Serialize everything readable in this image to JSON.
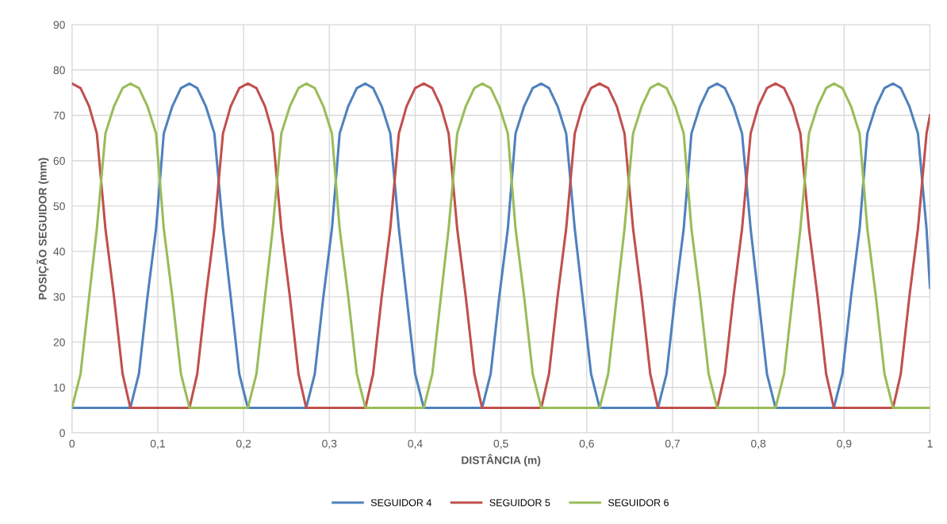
{
  "chart_data": {
    "type": "line",
    "xlabel": "DISTÂNCIA (m)",
    "ylabel": "POSIÇÃO SEGUIDOR (mm)",
    "x": [
      0,
      0.01,
      0.02,
      0.029,
      0.039,
      0.049,
      0.059,
      0.068,
      0.078,
      0.088,
      0.098,
      0.107,
      0.117,
      0.127,
      0.137,
      0.146,
      0.156,
      0.166,
      0.176,
      0.185,
      0.195,
      0.205,
      0.215,
      0.225,
      0.234,
      0.244,
      0.254,
      0.264,
      0.273,
      0.283,
      0.293,
      0.303,
      0.312,
      0.322,
      0.332,
      0.342,
      0.351,
      0.361,
      0.371,
      0.381,
      0.39,
      0.4,
      0.41,
      0.42,
      0.43,
      0.439,
      0.449,
      0.459,
      0.469,
      0.478,
      0.488,
      0.498,
      0.508,
      0.517,
      0.527,
      0.537,
      0.547,
      0.556,
      0.566,
      0.576,
      0.586,
      0.595,
      0.605,
      0.615,
      0.625,
      0.635,
      0.644,
      0.654,
      0.664,
      0.674,
      0.683,
      0.693,
      0.703,
      0.713,
      0.722,
      0.732,
      0.742,
      0.752,
      0.761,
      0.771,
      0.781,
      0.791,
      0.8,
      0.81,
      0.82,
      0.83,
      0.84,
      0.849,
      0.859,
      0.869,
      0.879,
      0.888,
      0.898,
      0.908,
      0.918,
      0.927,
      0.937,
      0.947,
      0.957,
      0.966,
      0.976,
      0.986,
      0.996,
      1.0
    ],
    "series": [
      {
        "name": "SEGUIDOR 4",
        "color": "#4f81bd",
        "values": [
          5.5,
          5.5,
          5.5,
          5.5,
          5.5,
          5.5,
          5.5,
          5.5,
          13,
          30,
          45,
          66,
          72,
          76,
          77,
          76,
          72,
          66,
          45,
          30,
          13,
          5.5,
          5.5,
          5.5,
          5.5,
          5.5,
          5.5,
          5.5,
          5.5,
          13,
          30,
          45,
          66,
          72,
          76,
          77,
          76,
          72,
          66,
          45,
          30,
          13,
          5.5,
          5.5,
          5.5,
          5.5,
          5.5,
          5.5,
          5.5,
          5.5,
          13,
          30,
          45,
          66,
          72,
          76,
          77,
          76,
          72,
          66,
          45,
          30,
          13,
          5.5,
          5.5,
          5.5,
          5.5,
          5.5,
          5.5,
          5.5,
          5.5,
          13,
          30,
          45,
          66,
          72,
          76,
          77,
          76,
          72,
          66,
          45,
          30,
          13,
          5.5,
          5.5,
          5.5,
          5.5,
          5.5,
          5.5,
          5.5,
          5.5,
          13,
          30,
          45,
          66,
          72,
          76,
          77,
          76,
          72,
          66,
          45,
          32
        ]
      },
      {
        "name": "SEGUIDOR 5",
        "color": "#c0504d",
        "values": [
          77,
          76,
          72,
          66,
          45,
          30,
          13,
          5.5,
          5.5,
          5.5,
          5.5,
          5.5,
          5.5,
          5.5,
          5.5,
          13,
          30,
          45,
          66,
          72,
          76,
          77,
          76,
          72,
          66,
          45,
          30,
          13,
          5.5,
          5.5,
          5.5,
          5.5,
          5.5,
          5.5,
          5.5,
          5.5,
          13,
          30,
          45,
          66,
          72,
          76,
          77,
          76,
          72,
          66,
          45,
          30,
          13,
          5.5,
          5.5,
          5.5,
          5.5,
          5.5,
          5.5,
          5.5,
          5.5,
          13,
          30,
          45,
          66,
          72,
          76,
          77,
          76,
          72,
          66,
          45,
          30,
          13,
          5.5,
          5.5,
          5.5,
          5.5,
          5.5,
          5.5,
          5.5,
          5.5,
          13,
          30,
          45,
          66,
          72,
          76,
          77,
          76,
          72,
          66,
          45,
          30,
          13,
          5.5,
          5.5,
          5.5,
          5.5,
          5.5,
          5.5,
          5.5,
          5.5,
          13,
          30,
          45,
          66,
          70
        ]
      },
      {
        "name": "SEGUIDOR 6",
        "color": "#9bbb59",
        "values": [
          5.5,
          13,
          30,
          45,
          66,
          72,
          76,
          77,
          76,
          72,
          66,
          45,
          30,
          13,
          5.5,
          5.5,
          5.5,
          5.5,
          5.5,
          5.5,
          5.5,
          5.5,
          13,
          30,
          45,
          66,
          72,
          76,
          77,
          76,
          72,
          66,
          45,
          30,
          13,
          5.5,
          5.5,
          5.5,
          5.5,
          5.5,
          5.5,
          5.5,
          5.5,
          13,
          30,
          45,
          66,
          72,
          76,
          77,
          76,
          72,
          66,
          45,
          30,
          13,
          5.5,
          5.5,
          5.5,
          5.5,
          5.5,
          5.5,
          5.5,
          5.5,
          13,
          30,
          45,
          66,
          72,
          76,
          77,
          76,
          72,
          66,
          45,
          30,
          13,
          5.5,
          5.5,
          5.5,
          5.5,
          5.5,
          5.5,
          5.5,
          5.5,
          13,
          30,
          45,
          66,
          72,
          76,
          77,
          76,
          72,
          66,
          45,
          30,
          13,
          5.5,
          5.5,
          5.5,
          5.5,
          5.5,
          5.5
        ]
      }
    ],
    "xlim": [
      0,
      1
    ],
    "ylim": [
      0,
      90
    ],
    "xticks": [
      0,
      {
        "value": 0.1,
        "label": "0,1"
      },
      {
        "value": 0.2,
        "label": "0,2"
      },
      {
        "value": 0.3,
        "label": "0,3"
      },
      {
        "value": 0.4,
        "label": "0,4"
      },
      {
        "value": 0.5,
        "label": "0,5"
      },
      {
        "value": 0.6,
        "label": "0,6"
      },
      {
        "value": 0.7,
        "label": "0,7"
      },
      {
        "value": 0.8,
        "label": "0,8"
      },
      {
        "value": 0.9,
        "label": "0,9"
      },
      1
    ],
    "yticks": [
      0,
      10,
      20,
      30,
      40,
      50,
      60,
      70,
      80,
      90
    ],
    "grid": true,
    "legend": "bottom",
    "marker": "none",
    "line_style": "solid"
  }
}
